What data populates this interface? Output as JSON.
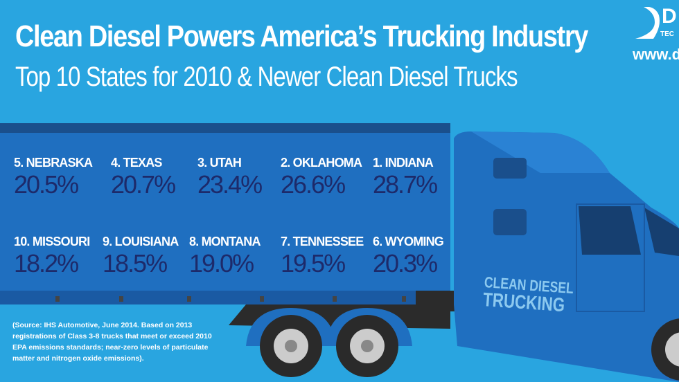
{
  "header": {
    "title": "Clean Diesel Powers America’s Trucking Industry",
    "subtitle": "Top 10 States for 2010 & Newer Clean Diesel Trucks"
  },
  "logo": {
    "letter": "D",
    "tagline": "TEC",
    "url": "www.di"
  },
  "states": [
    {
      "rank_state": "5. NEBRASKA",
      "pct": "20.5%"
    },
    {
      "rank_state": "4. TEXAS",
      "pct": "20.7%"
    },
    {
      "rank_state": "3. UTAH",
      "pct": "23.4%"
    },
    {
      "rank_state": "2. OKLAHOMA",
      "pct": "26.6%"
    },
    {
      "rank_state": "1. INDIANA",
      "pct": "28.7%"
    },
    {
      "rank_state": "10. MISSOURI",
      "pct": "18.2%"
    },
    {
      "rank_state": "9. LOUISIANA",
      "pct": "18.5%"
    },
    {
      "rank_state": "8. MONTANA",
      "pct": "19.0%"
    },
    {
      "rank_state": "7. TENNESSEE",
      "pct": "19.5%"
    },
    {
      "rank_state": "6. WYOMING",
      "pct": "20.3%"
    }
  ],
  "truck_label": {
    "line1": "CLEAN DIESEL",
    "line2": "TRUCKING"
  },
  "source": "(Source: IHS Automotive, June 2014. Based on 2013 registrations of Class 3-8 trucks that meet or exceed 2010 EPA emissions standards; near-zero levels of particulate matter and nitrogen oxide emissions).",
  "colors": {
    "background": "#29a5e0",
    "trailer": "#1f6fc0",
    "percent": "#1d2a6a"
  }
}
